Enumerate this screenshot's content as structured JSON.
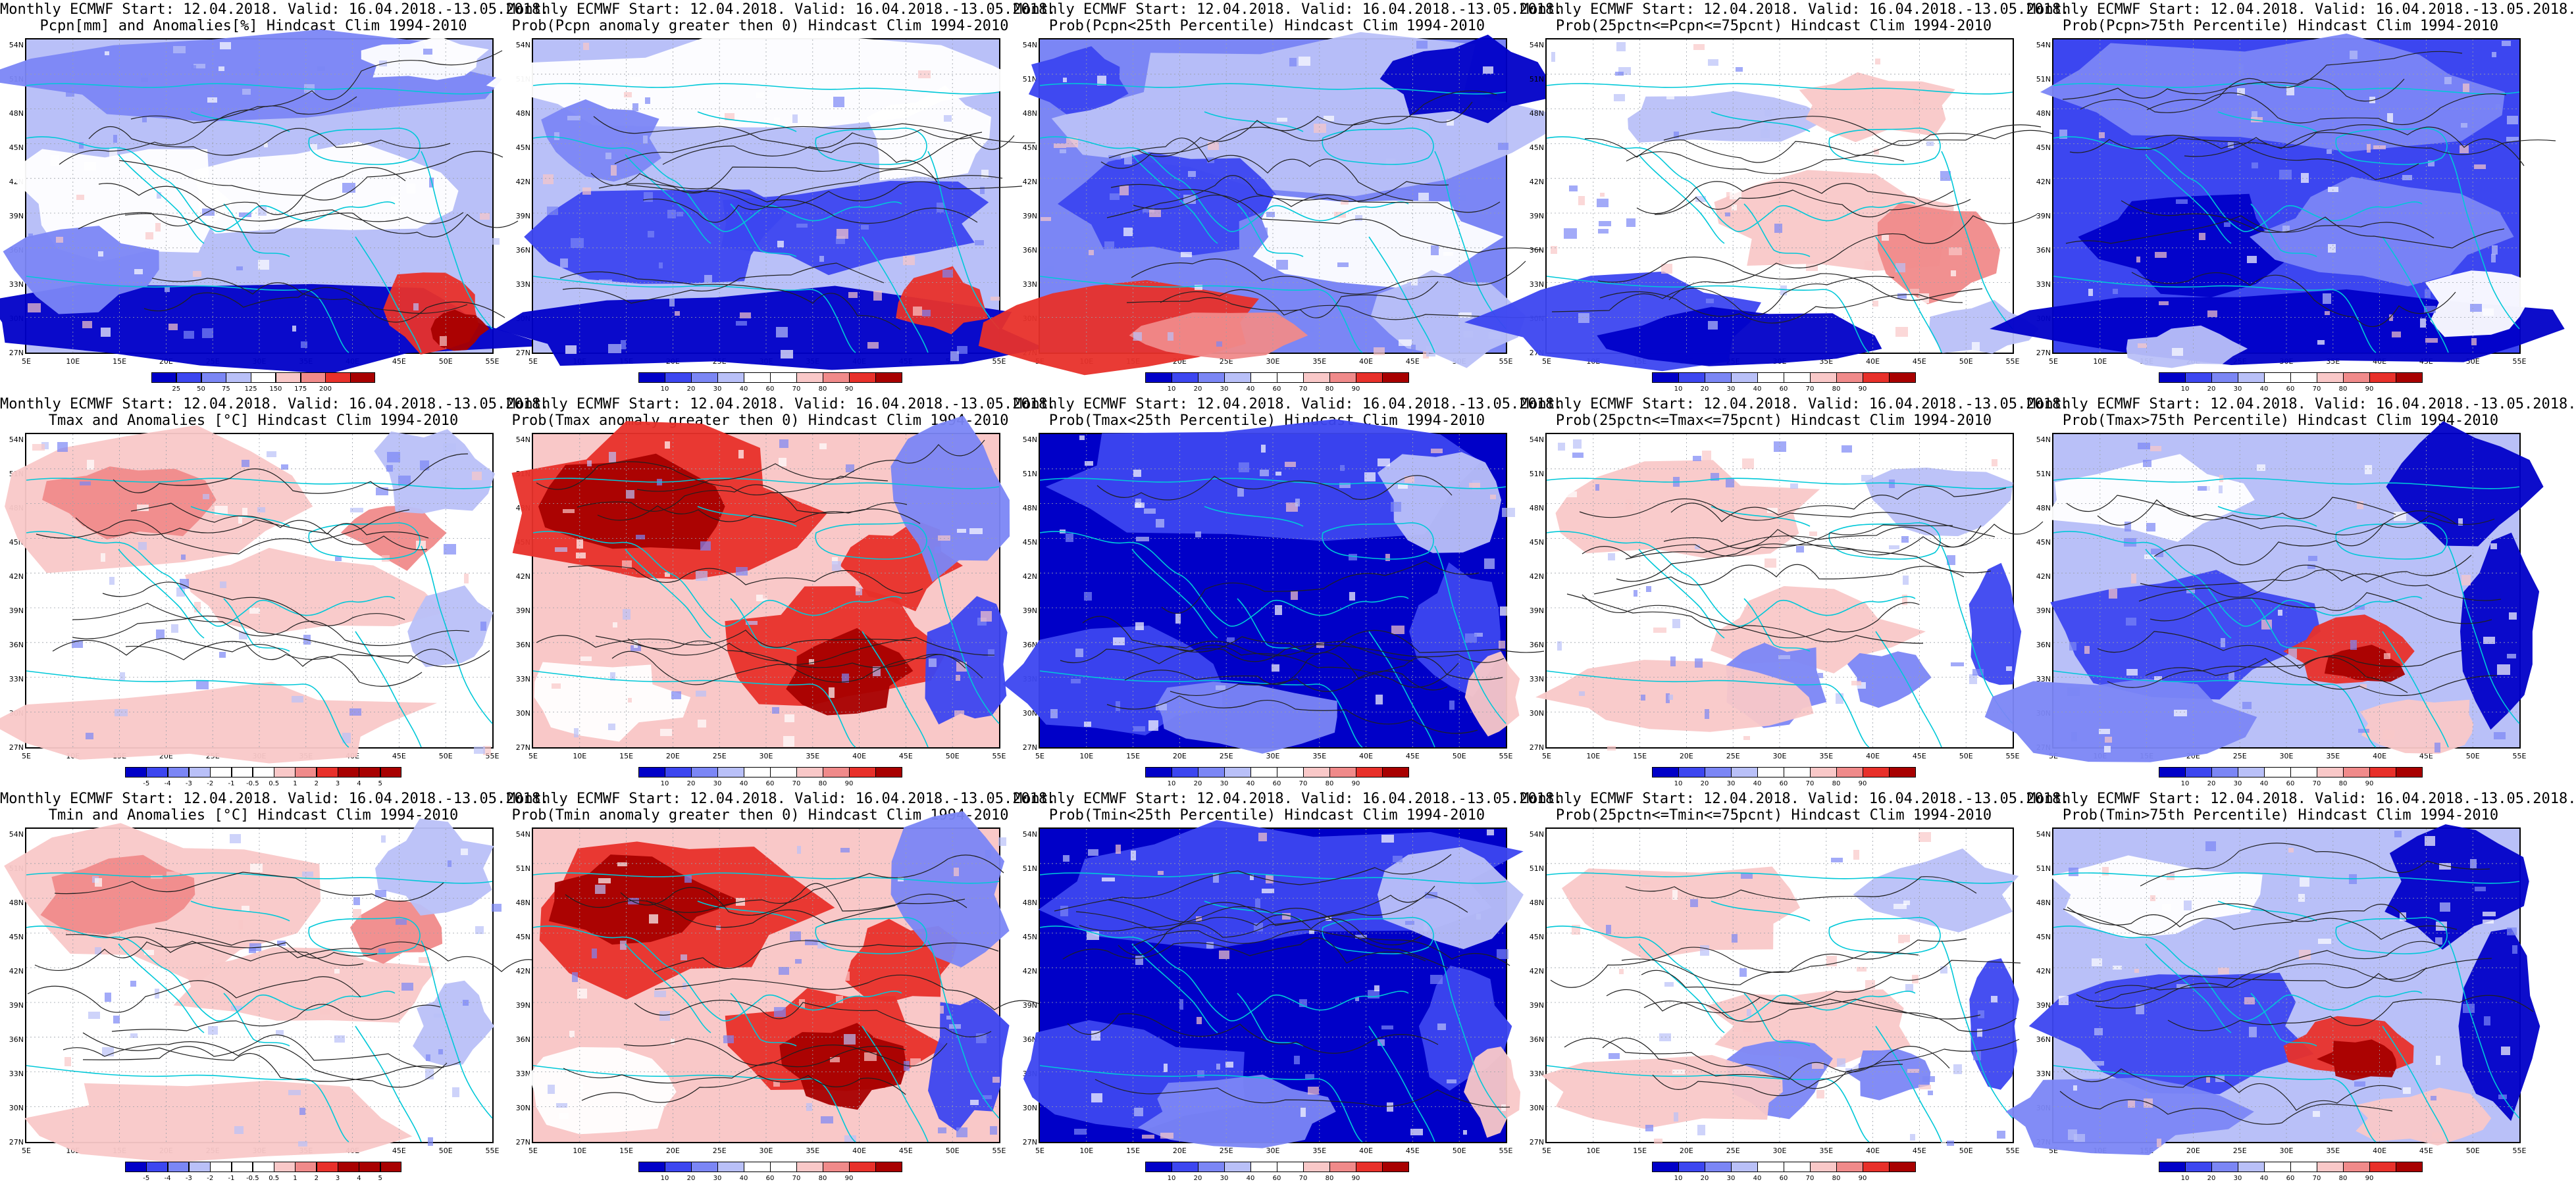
{
  "title_line1": "Monthly ECMWF Start: 12.04.2018. Valid: 16.04.2018.-13.05.2018.",
  "lat_labels": [
    "54N",
    "51N",
    "48N",
    "45N",
    "42N",
    "39N",
    "36N",
    "33N",
    "30N",
    "27N"
  ],
  "lon_labels": [
    "5E",
    "10E",
    "15E",
    "20E",
    "25E",
    "30E",
    "35E",
    "40E",
    "45E",
    "50E",
    "55E"
  ],
  "colors": {
    "darkblue": "#0000c8",
    "blue": "#3c46f0",
    "midblue": "#7b86f5",
    "lightblue": "#b9c0f8",
    "white": "#ffffff",
    "lightred": "#f9c8c8",
    "midred": "#f08a8a",
    "red": "#e8302a",
    "darkred": "#a80000",
    "coast": "#00c8d8",
    "contour": "#202020"
  },
  "panels": [
    {
      "title2": "Pcpn[mm] and Anomalies[%] Hindcast Clim 1994-2010",
      "scale": "pcpn",
      "theme": "pcpnanom"
    },
    {
      "title2": "Prob(Pcpn anomaly greater then 0) Hindcast Clim 1994-2010",
      "scale": "prob",
      "theme": "pcpnpos"
    },
    {
      "title2": "Prob(Pcpn<25th Percentile) Hindcast Clim 1994-2010",
      "scale": "prob",
      "theme": "pcpnlow"
    },
    {
      "title2": "Prob(25pctn<=Pcpn<=75pcnt) Hindcast Clim 1994-2010",
      "scale": "prob",
      "theme": "pcpnmid"
    },
    {
      "title2": "Prob(Pcpn>75th Percentile) Hindcast Clim 1994-2010",
      "scale": "prob",
      "theme": "pcpnhigh"
    },
    {
      "title2": "Tmax and Anomalies [°C] Hindcast Clim 1994-2010",
      "scale": "temp",
      "theme": "tanom"
    },
    {
      "title2": "Prob(Tmax anomaly greater then 0) Hindcast Clim 1994-2010",
      "scale": "prob",
      "theme": "twarm"
    },
    {
      "title2": "Prob(Tmax<25th Percentile) Hindcast Clim 1994-2010",
      "scale": "prob",
      "theme": "tcold"
    },
    {
      "title2": "Prob(25pctn<=Tmax<=75pcnt) Hindcast Clim 1994-2010",
      "scale": "prob",
      "theme": "tmid"
    },
    {
      "title2": "Prob(Tmax>75th Percentile) Hindcast Clim 1994-2010",
      "scale": "prob",
      "theme": "thigh"
    },
    {
      "title2": "Tmin and Anomalies [°C] Hindcast Clim 1994-2010",
      "scale": "temp",
      "theme": "tanom"
    },
    {
      "title2": "Prob(Tmin anomaly greater then 0) Hindcast Clim 1994-2010",
      "scale": "prob",
      "theme": "twarm"
    },
    {
      "title2": "Prob(Tmin<25th Percentile) Hindcast Clim 1994-2010",
      "scale": "prob",
      "theme": "tcold"
    },
    {
      "title2": "Prob(25pctn<=Tmin<=75pcnt) Hindcast Clim 1994-2010",
      "scale": "prob",
      "theme": "tmid"
    },
    {
      "title2": "Prob(Tmin>75th Percentile) Hindcast Clim 1994-2010",
      "scale": "prob",
      "theme": "thigh"
    }
  ],
  "scales": {
    "pcpn": [
      "25",
      "50",
      "75",
      "125",
      "150",
      "175",
      "200"
    ],
    "prob": [
      "10",
      "20",
      "30",
      "40",
      "60",
      "70",
      "80",
      "90"
    ],
    "temp": [
      "-5",
      "-4",
      "-3",
      "-2",
      "-1",
      "-0.5",
      "0.5",
      "1",
      "2",
      "3",
      "4",
      "5"
    ]
  }
}
